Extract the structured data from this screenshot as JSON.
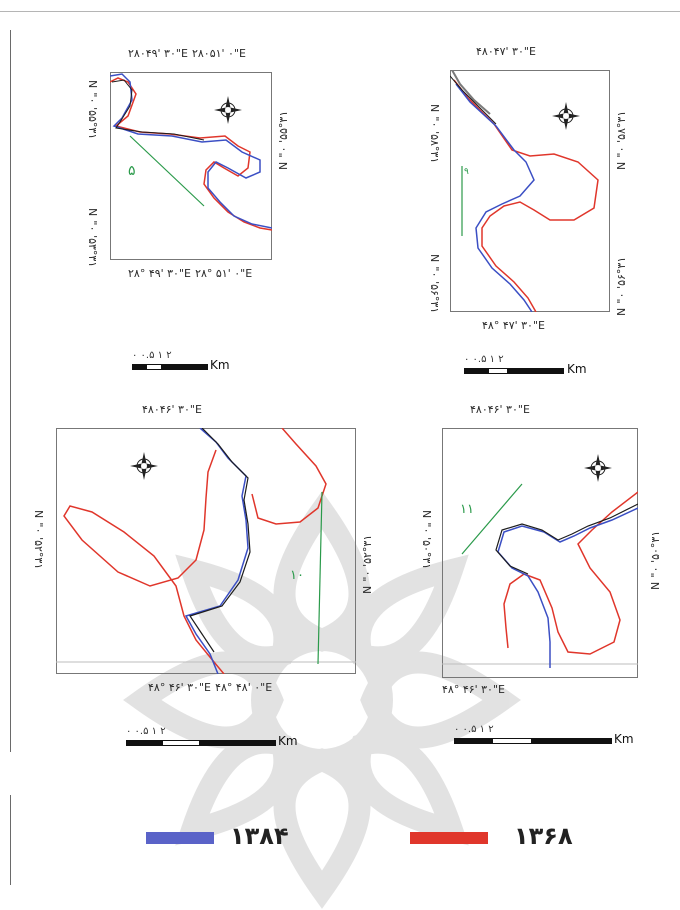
{
  "colors": {
    "blue": "#3b4fc4",
    "red": "#e0362b",
    "green": "#2a9a4a",
    "dark": "#1c1c1c"
  },
  "panel_tl": {
    "top_labels": "۲۸۰۴۹' ۳۰\"E  ۲۸۰۵۱' ۰\"E",
    "bottom_labels": "۲۸° ۴۹' ۳۰\"E  ۲۸° ۵۱' ۰\"E",
    "left_top": "N \"۰ '۵۵°۳۱",
    "left_bottom": "N \"۰ '۵۳°۳۱",
    "right": "N \"۰ '۵۵°۳۱",
    "site_number": "۵"
  },
  "panel_tr": {
    "top_label": "۴۸۰۴۷' ۳۰\"E",
    "bottom_label": "۴۸° ۴۷' ۳۰\"E",
    "left_top": "N \"۰ '۵۸°۳۱",
    "left_bottom": "N \"۰ '۵۶°۳۱",
    "right_top": "N \"۰ '۵۸°۳۱",
    "right_bottom": "N \"۰ '۵۶°۳۱",
    "site_number": "۹"
  },
  "panel_bl": {
    "top_label": "۴۸۰۴۶' ۳۰\"E",
    "bottom_label": "۴۸° ۴۶' ۳۰\"E  ۴۸° ۴۸' ۰\"E",
    "left": "N \"۰ '۵۲°۳۱",
    "right": "N \"۰ '۵۲°۳۱",
    "site_number": "۱۰"
  },
  "panel_br": {
    "top_label": "۴۸۰۴۶' ۳۰\"E",
    "bottom_label": "۴۸° ۴۶' ۳۰\"E",
    "left": "N \"۰ '۵۰°۳۱",
    "right": "N \"۰ '۵۰°۳۱",
    "site_number": "۱۱"
  },
  "scale": {
    "ticks_tl": "۰  ۰.۵  ۱       ۲",
    "ticks_tr": "۰  ۰.۵  ۱       ۲",
    "ticks_bl": "۰     ۰.۵    ۱          ۲",
    "ticks_br": "۰      ۰.۵     ۱          ۲",
    "unit": "Km"
  },
  "legend": {
    "blue_year": "۱۳۸۴",
    "red_year": "۱۳۶۸",
    "blue_color": "#3b4fc4",
    "red_color": "#e0362b"
  }
}
